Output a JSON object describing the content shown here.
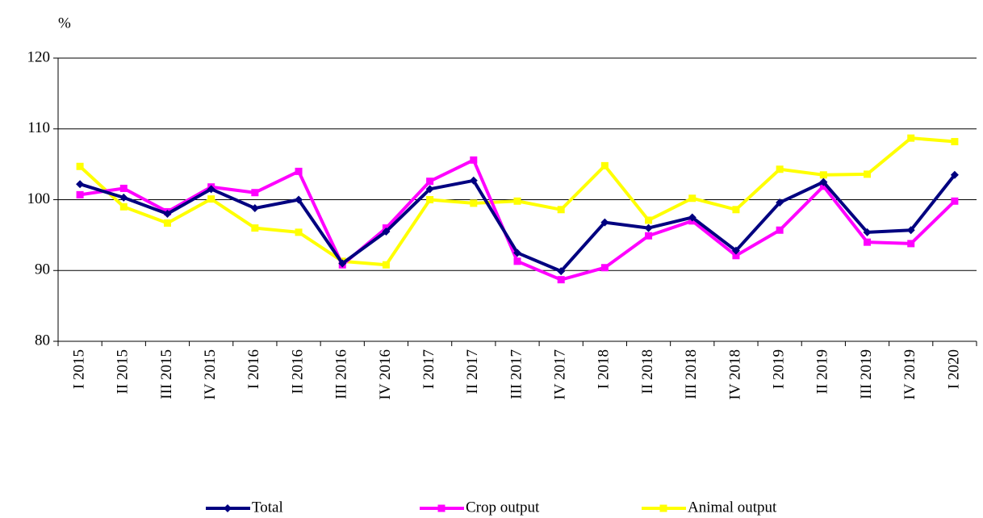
{
  "chart_data": {
    "type": "line",
    "unit": "%",
    "categories": [
      "I 2015",
      "II 2015",
      "III 2015",
      "IV 2015",
      "I 2016",
      "II 2016",
      "III 2016",
      "IV 2016",
      "I 2017",
      "II 2017",
      "III 2017",
      "IV 2017",
      "I 2018",
      "II 2018",
      "III 2018",
      "IV 2018",
      "I 2019",
      "II 2019",
      "III 2019",
      "IV 2019",
      "I 2020"
    ],
    "series": [
      {
        "name": "Total",
        "color": "#000080",
        "marker": "diamond",
        "values": [
          102.2,
          100.3,
          98.0,
          101.5,
          98.8,
          100.0,
          91.0,
          95.5,
          101.5,
          102.7,
          92.5,
          89.9,
          96.8,
          96.0,
          97.5,
          92.8,
          99.6,
          102.5,
          95.4,
          95.7,
          103.5
        ]
      },
      {
        "name": "Crop output",
        "color": "#ff00ff",
        "marker": "square",
        "values": [
          100.7,
          101.6,
          98.3,
          101.8,
          101.0,
          104.0,
          90.8,
          96.0,
          102.6,
          105.6,
          91.3,
          88.7,
          90.4,
          94.9,
          97.0,
          92.1,
          95.7,
          101.9,
          94.0,
          93.8,
          99.8
        ]
      },
      {
        "name": "Animal output",
        "color": "#ffff00",
        "marker": "square",
        "values": [
          104.7,
          99.0,
          96.7,
          100.1,
          96.0,
          95.4,
          91.3,
          90.8,
          100.0,
          99.5,
          99.8,
          98.6,
          104.8,
          97.1,
          100.2,
          98.6,
          104.3,
          103.5,
          103.6,
          108.7,
          108.2
        ]
      }
    ],
    "ylim": [
      80,
      120
    ],
    "yticks": [
      80,
      90,
      100,
      110,
      120
    ],
    "grid": true
  }
}
